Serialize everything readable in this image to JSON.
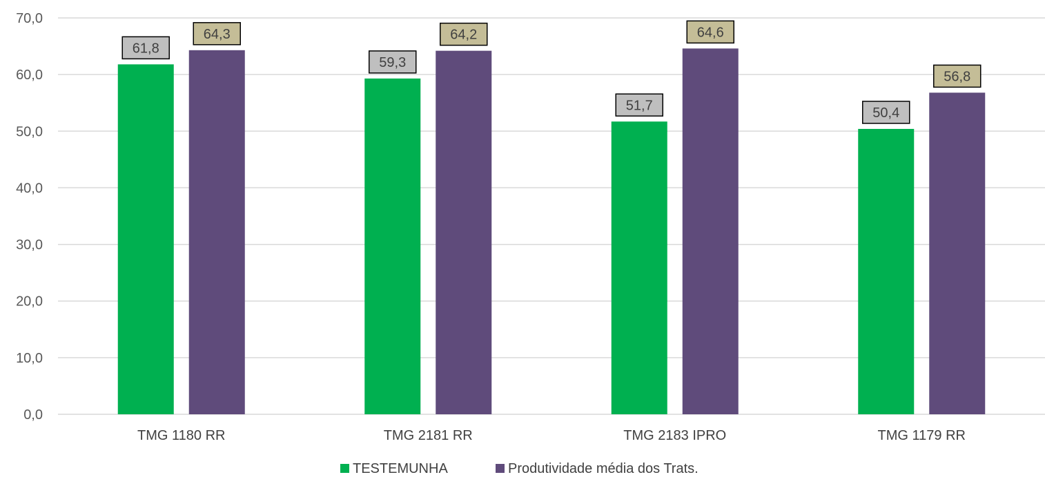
{
  "chart_data": {
    "type": "bar",
    "title": "",
    "xlabel": "",
    "ylabel": "",
    "categories": [
      "TMG 1180 RR",
      "TMG 2181 RR",
      "TMG 2183 IPRO",
      "TMG 1179 RR"
    ],
    "series": [
      {
        "name": "TESTEMUNHA",
        "values": [
          61.8,
          59.3,
          51.7,
          50.4
        ],
        "labels": [
          "61,8",
          "59,3",
          "51,7",
          "50,4"
        ],
        "color": "#00b050",
        "label_bg": "#bfbfbf"
      },
      {
        "name": "Produtividade média dos Trats.",
        "values": [
          64.3,
          64.2,
          64.6,
          56.8
        ],
        "labels": [
          "64,3",
          "64,2",
          "64,6",
          "56,8"
        ],
        "color": "#5f4b7b",
        "label_bg": "#c4bd97"
      }
    ],
    "ylim": [
      0,
      70
    ],
    "yticks": [
      0,
      10,
      20,
      30,
      40,
      50,
      60,
      70
    ],
    "ytick_labels": [
      "0,0",
      "10,0",
      "20,0",
      "30,0",
      "40,0",
      "50,0",
      "60,0",
      "70,0"
    ],
    "grid": true,
    "legend": "bottom-center",
    "gridline_color": "#d9d9d9"
  }
}
